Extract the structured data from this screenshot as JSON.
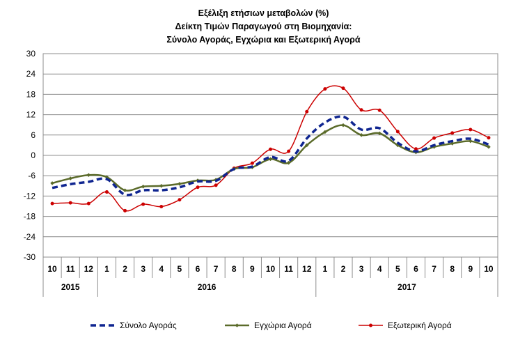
{
  "chart_data": {
    "type": "line",
    "title": [
      "Εξέλιξη ετήσιων μεταβολών (%)",
      "Δείκτη Τιμών Παραγωγού στη Βιομηχανία:",
      "Σύνολο Αγοράς, Εγχώρια και Εξωτερική Αγορά"
    ],
    "x": [
      "10",
      "11",
      "12",
      "1",
      "2",
      "3",
      "4",
      "5",
      "6",
      "7",
      "8",
      "9",
      "10",
      "11",
      "12",
      "1",
      "2",
      "3",
      "4",
      "5",
      "6",
      "7",
      "8",
      "9",
      "10"
    ],
    "years": [
      {
        "label": "2015",
        "start": 0,
        "end": 2
      },
      {
        "label": "2016",
        "start": 3,
        "end": 14
      },
      {
        "label": "2017",
        "start": 15,
        "end": 24
      }
    ],
    "ylim": [
      -30,
      30
    ],
    "yticks": [
      30,
      24,
      18,
      12,
      6,
      0,
      -6,
      -12,
      -18,
      -24,
      -30
    ],
    "grid": true,
    "legend_position": "bottom",
    "series": [
      {
        "name": "Σύνολο Αγοράς",
        "color": "#0f2590",
        "style": "dashed",
        "values": [
          -9.6,
          -8.5,
          -7.8,
          -7.0,
          -11.6,
          -10.3,
          -10.3,
          -9.4,
          -7.7,
          -7.5,
          -4.0,
          -3.3,
          -0.5,
          -1.6,
          5.0,
          9.7,
          11.4,
          7.6,
          8.0,
          3.7,
          1.2,
          3.0,
          4.2,
          4.9,
          3.2
        ]
      },
      {
        "name": "Εγχώρια Αγορά",
        "color": "#5b6b2a",
        "style": "solid-diamond",
        "values": [
          -8.2,
          -6.8,
          -5.8,
          -6.4,
          -10.3,
          -9.2,
          -9.0,
          -8.4,
          -7.4,
          -7.2,
          -4.0,
          -3.5,
          -1.1,
          -2.2,
          3.0,
          6.9,
          8.9,
          6.0,
          6.5,
          3.0,
          0.9,
          2.5,
          3.5,
          4.2,
          2.5
        ]
      },
      {
        "name": "Εξωτερική Αγορά",
        "color": "#cc0000",
        "style": "solid-circle",
        "values": [
          -14.2,
          -14.0,
          -14.2,
          -10.8,
          -16.3,
          -14.4,
          -15.1,
          -13.1,
          -9.4,
          -8.8,
          -3.8,
          -2.3,
          1.8,
          1.2,
          12.9,
          19.6,
          19.8,
          13.4,
          13.3,
          7.0,
          1.9,
          5.1,
          6.6,
          7.6,
          5.2
        ]
      }
    ]
  }
}
